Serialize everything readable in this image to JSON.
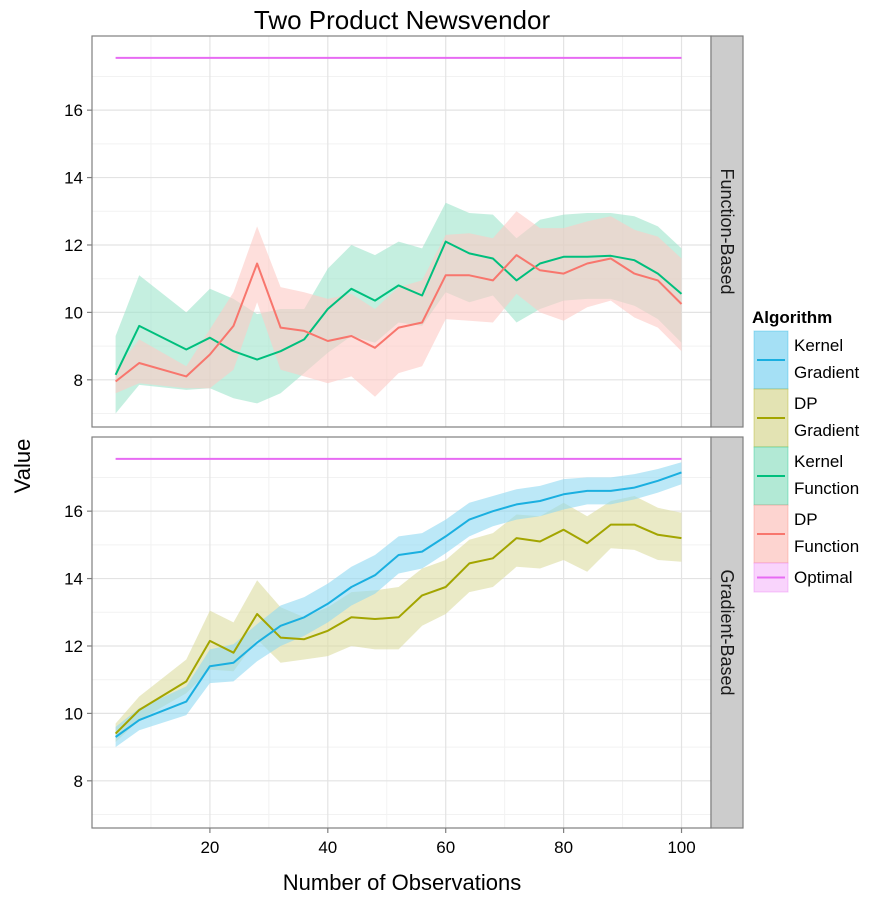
{
  "chart_data": {
    "type": "line",
    "title": "Two Product Newsvendor",
    "xlabel": "Number of Observations",
    "ylabel": "Value",
    "xlim": [
      0,
      105
    ],
    "ylim": [
      6.6,
      18.2
    ],
    "x_ticks": [
      20,
      40,
      60,
      80,
      100
    ],
    "y_ticks": [
      8,
      10,
      12,
      14,
      16
    ],
    "grid": true,
    "legend": {
      "title": "Algorithm",
      "placement": "right",
      "entries": [
        {
          "key": "kernel_gradient",
          "lines": [
            "Kernel",
            "Gradient"
          ],
          "color": "#1AAFE0",
          "fill": "#8FD8F2"
        },
        {
          "key": "dp_gradient",
          "lines": [
            "DP",
            "Gradient"
          ],
          "color": "#A3A500",
          "fill": "#DCDCA0"
        },
        {
          "key": "kernel_function",
          "lines": [
            "Kernel",
            "Function"
          ],
          "color": "#00BF7D",
          "fill": "#9FE4CB"
        },
        {
          "key": "dp_function",
          "lines": [
            "DP",
            "Function"
          ],
          "color": "#F8766D",
          "fill": "#FDC9C4"
        },
        {
          "key": "optimal",
          "lines": [
            "Optimal"
          ],
          "color": "#E76BF3",
          "fill": "#F7C9FB"
        }
      ]
    },
    "panels": [
      {
        "strip": "Function-Based",
        "series": [
          {
            "name": "Kernel Function",
            "key": "kernel_function",
            "x": [
              4,
              8,
              16,
              20,
              24,
              28,
              32,
              36,
              40,
              44,
              48,
              52,
              56,
              60,
              64,
              68,
              72,
              76,
              80,
              84,
              88,
              92,
              96,
              100
            ],
            "y": [
              8.15,
              9.6,
              8.9,
              9.25,
              8.85,
              8.6,
              8.85,
              9.2,
              10.1,
              10.7,
              10.35,
              10.8,
              10.5,
              12.1,
              11.75,
              11.6,
              10.95,
              11.45,
              11.65,
              11.65,
              11.68,
              11.55,
              11.15,
              10.55
            ],
            "lo": [
              7.0,
              7.85,
              7.7,
              7.75,
              7.45,
              7.3,
              7.6,
              8.2,
              8.8,
              9.3,
              9.1,
              9.7,
              9.6,
              10.6,
              10.3,
              10.5,
              9.7,
              10.1,
              10.35,
              10.4,
              10.4,
              10.2,
              9.8,
              9.1
            ],
            "hi": [
              9.3,
              11.1,
              10.0,
              10.7,
              10.4,
              9.95,
              10.1,
              10.1,
              11.3,
              12.0,
              11.7,
              12.1,
              11.9,
              13.25,
              12.95,
              12.9,
              12.2,
              12.75,
              12.9,
              12.95,
              12.95,
              12.85,
              12.55,
              11.9
            ]
          },
          {
            "name": "DP Function",
            "key": "dp_function",
            "x": [
              4,
              8,
              16,
              20,
              24,
              28,
              32,
              36,
              40,
              44,
              48,
              52,
              56,
              60,
              64,
              68,
              72,
              76,
              80,
              84,
              88,
              92,
              96,
              100
            ],
            "y": [
              7.95,
              8.5,
              8.1,
              8.75,
              9.6,
              11.45,
              9.55,
              9.45,
              9.15,
              9.3,
              8.95,
              9.55,
              9.7,
              11.1,
              11.1,
              10.95,
              11.7,
              11.25,
              11.15,
              11.45,
              11.6,
              11.15,
              10.95,
              10.25
            ],
            "lo": [
              7.6,
              7.9,
              7.75,
              7.75,
              8.3,
              10.3,
              8.3,
              8.1,
              7.9,
              8.1,
              7.5,
              8.2,
              8.4,
              9.8,
              9.75,
              9.7,
              10.55,
              10.0,
              9.75,
              10.15,
              10.35,
              9.85,
              9.55,
              8.85
            ],
            "hi": [
              8.3,
              9.2,
              8.4,
              9.5,
              10.6,
              12.55,
              10.75,
              10.6,
              10.4,
              10.55,
              10.1,
              10.75,
              10.95,
              12.3,
              12.35,
              12.2,
              13.0,
              12.5,
              12.5,
              12.7,
              12.85,
              12.45,
              12.25,
              11.6
            ]
          },
          {
            "name": "Optimal",
            "key": "optimal",
            "x": [
              4,
              100
            ],
            "y": [
              17.55,
              17.55
            ]
          }
        ]
      },
      {
        "strip": "Gradient-Based",
        "series": [
          {
            "name": "DP Gradient",
            "key": "dp_gradient",
            "x": [
              4,
              8,
              16,
              20,
              24,
              28,
              32,
              36,
              40,
              44,
              48,
              52,
              56,
              60,
              64,
              68,
              72,
              76,
              80,
              84,
              88,
              92,
              96,
              100
            ],
            "y": [
              9.4,
              10.1,
              10.95,
              12.15,
              11.8,
              12.95,
              12.25,
              12.2,
              12.45,
              12.85,
              12.8,
              12.85,
              13.5,
              13.75,
              14.45,
              14.6,
              15.2,
              15.1,
              15.45,
              15.05,
              15.6,
              15.6,
              15.3,
              15.2
            ],
            "lo": [
              9.15,
              9.8,
              10.6,
              11.3,
              11.25,
              12.2,
              11.5,
              11.6,
              11.7,
              12.0,
              11.9,
              11.9,
              12.6,
              12.95,
              13.6,
              13.75,
              14.35,
              14.3,
              14.55,
              14.2,
              14.9,
              14.85,
              14.55,
              14.5
            ],
            "hi": [
              9.7,
              10.5,
              11.6,
              13.05,
              12.7,
              13.95,
              13.15,
              12.85,
              13.15,
              13.6,
              13.65,
              13.75,
              14.3,
              14.55,
              15.15,
              15.35,
              15.9,
              15.85,
              16.25,
              15.85,
              16.3,
              16.45,
              16.1,
              15.95
            ]
          },
          {
            "name": "Kernel Gradient",
            "key": "kernel_gradient",
            "x": [
              4,
              8,
              16,
              20,
              24,
              28,
              32,
              36,
              40,
              44,
              48,
              52,
              56,
              60,
              64,
              68,
              72,
              76,
              80,
              84,
              88,
              92,
              96,
              100
            ],
            "y": [
              9.3,
              9.8,
              10.35,
              11.4,
              11.5,
              12.1,
              12.6,
              12.85,
              13.25,
              13.75,
              14.1,
              14.7,
              14.8,
              15.25,
              15.75,
              16.0,
              16.2,
              16.3,
              16.5,
              16.6,
              16.6,
              16.7,
              16.9,
              17.15
            ],
            "lo": [
              9.0,
              9.5,
              9.95,
              10.9,
              10.95,
              11.55,
              12.0,
              12.3,
              12.7,
              13.2,
              13.55,
              14.15,
              14.3,
              14.75,
              15.25,
              15.55,
              15.75,
              15.85,
              16.05,
              16.2,
              16.2,
              16.35,
              16.55,
              16.8
            ],
            "hi": [
              9.6,
              10.15,
              10.8,
              11.9,
              12.05,
              12.65,
              13.2,
              13.45,
              13.85,
              14.35,
              14.7,
              15.25,
              15.35,
              15.75,
              16.25,
              16.45,
              16.65,
              16.75,
              16.95,
              17.0,
              17.0,
              17.1,
              17.25,
              17.45
            ]
          },
          {
            "name": "Optimal",
            "key": "optimal",
            "x": [
              4,
              100
            ],
            "y": [
              17.55,
              17.55
            ]
          }
        ]
      }
    ]
  }
}
